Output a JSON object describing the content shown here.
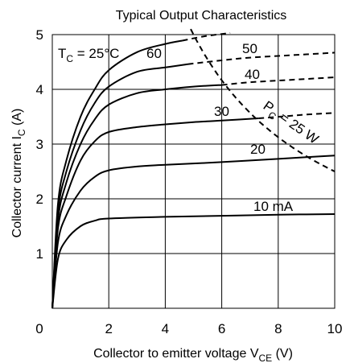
{
  "chart_data": {
    "type": "line",
    "title": "Typical Output Characteristics",
    "xlabel": {
      "main": "Collector to emitter voltage  V",
      "sub": "CE",
      "unit": "  (V)"
    },
    "ylabel": {
      "main": "Collector current  I",
      "sub": "C",
      "unit": "  (A)"
    },
    "xlim": [
      0,
      10
    ],
    "ylim": [
      0,
      5
    ],
    "xticks": [
      "0",
      "2",
      "4",
      "6",
      "8",
      "10"
    ],
    "yticks": [
      "1",
      "2",
      "3",
      "4",
      "5"
    ],
    "grid": true,
    "condition": {
      "main": "T",
      "sub": "C",
      "rest": " = 25°C"
    },
    "power_label": {
      "main": "P",
      "sub": "C",
      "rest": " = 25 W"
    },
    "series": [
      {
        "name": "10 mA",
        "label": "10 mA",
        "solid": [
          [
            0,
            0
          ],
          [
            0.2,
            0.9
          ],
          [
            0.5,
            1.25
          ],
          [
            1,
            1.5
          ],
          [
            1.5,
            1.6
          ],
          [
            2,
            1.64
          ],
          [
            4,
            1.67
          ],
          [
            6,
            1.69
          ],
          [
            8,
            1.71
          ],
          [
            10,
            1.72
          ]
        ],
        "dashed": []
      },
      {
        "name": "20",
        "label": "20",
        "solid": [
          [
            0,
            0
          ],
          [
            0.2,
            1.2
          ],
          [
            0.5,
            1.7
          ],
          [
            1,
            2.15
          ],
          [
            1.5,
            2.4
          ],
          [
            2,
            2.52
          ],
          [
            3,
            2.59
          ],
          [
            4,
            2.62
          ],
          [
            6,
            2.67
          ],
          [
            8,
            2.73
          ],
          [
            9,
            2.76
          ],
          [
            10,
            2.79
          ]
        ],
        "dashed": []
      },
      {
        "name": "30",
        "label": "30",
        "solid": [
          [
            0,
            0
          ],
          [
            0.2,
            1.45
          ],
          [
            0.5,
            2.05
          ],
          [
            1,
            2.7
          ],
          [
            1.5,
            3.05
          ],
          [
            2,
            3.22
          ],
          [
            3,
            3.31
          ],
          [
            4,
            3.36
          ],
          [
            5,
            3.4
          ],
          [
            6,
            3.43
          ],
          [
            7.3,
            3.47
          ]
        ],
        "dashed": [
          [
            7.3,
            3.47
          ],
          [
            8.3,
            3.51
          ],
          [
            9,
            3.54
          ],
          [
            10,
            3.57
          ]
        ]
      },
      {
        "name": "40",
        "label": "40",
        "solid": [
          [
            0,
            0
          ],
          [
            0.2,
            1.6
          ],
          [
            0.5,
            2.3
          ],
          [
            1,
            3.0
          ],
          [
            1.5,
            3.45
          ],
          [
            2,
            3.72
          ],
          [
            3,
            3.93
          ],
          [
            4,
            4.0
          ],
          [
            5,
            4.05
          ],
          [
            6,
            4.08
          ]
        ],
        "dashed": [
          [
            6,
            4.08
          ],
          [
            7,
            4.13
          ],
          [
            8,
            4.16
          ],
          [
            9,
            4.19
          ],
          [
            10,
            4.22
          ]
        ]
      },
      {
        "name": "50",
        "label": "50",
        "solid": [
          [
            0,
            0
          ],
          [
            0.2,
            1.75
          ],
          [
            0.5,
            2.5
          ],
          [
            1,
            3.25
          ],
          [
            1.5,
            3.75
          ],
          [
            2,
            4.05
          ],
          [
            3,
            4.32
          ],
          [
            4,
            4.4
          ],
          [
            4.8,
            4.46
          ]
        ],
        "dashed": [
          [
            4.8,
            4.46
          ],
          [
            6,
            4.53
          ],
          [
            7,
            4.58
          ],
          [
            8,
            4.61
          ],
          [
            9,
            4.64
          ],
          [
            10,
            4.67
          ]
        ]
      },
      {
        "name": "60",
        "label": "60",
        "solid": [
          [
            0,
            0
          ],
          [
            0.2,
            1.9
          ],
          [
            0.5,
            2.7
          ],
          [
            1,
            3.5
          ],
          [
            1.5,
            4.0
          ],
          [
            2,
            4.35
          ],
          [
            3,
            4.68
          ],
          [
            4,
            4.83
          ],
          [
            4.6,
            4.89
          ]
        ],
        "dashed": [
          [
            4.6,
            4.89
          ],
          [
            5.4,
            4.97
          ],
          [
            6.3,
            5.03
          ]
        ]
      }
    ],
    "power_curve": {
      "name": "PC = 25 W",
      "watts": 25,
      "v_start": 4.9,
      "v_end": 10
    }
  }
}
